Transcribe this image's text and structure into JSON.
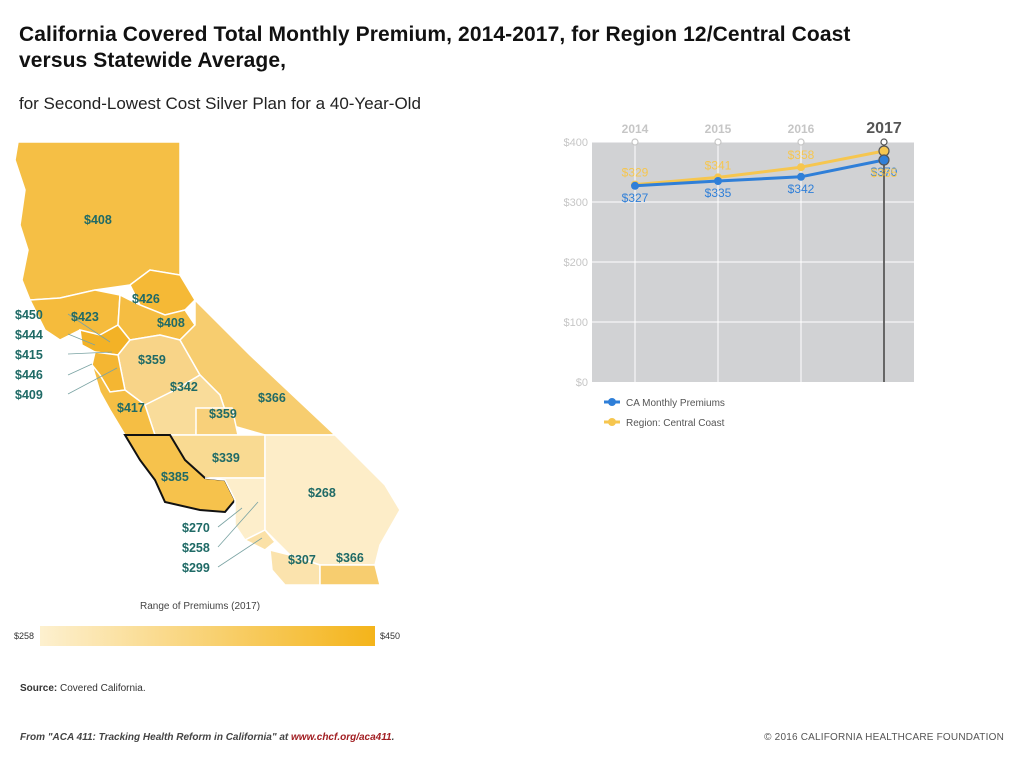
{
  "header": {
    "title_line1": "California Covered Total Monthly Premium, 2014-2017, for Region 12/Central Coast",
    "title_line2": "versus Statewide Average,",
    "subtitle": "for Second-Lowest Cost Silver Plan for a 40-Year-Old"
  },
  "map": {
    "regions": [
      {
        "id": "north",
        "label": "$408",
        "value": 408
      },
      {
        "id": "sierra",
        "label": "$426",
        "value": 426
      },
      {
        "id": "northbay",
        "label": "$423",
        "value": 423
      },
      {
        "id": "sacramento",
        "label": "$408",
        "value": 408
      },
      {
        "id": "sanjoaquin",
        "label": "$359",
        "value": 359
      },
      {
        "id": "central-valley",
        "label": "$342",
        "value": 342
      },
      {
        "id": "tulare",
        "label": "$359",
        "value": 359
      },
      {
        "id": "eastern",
        "label": "$366",
        "value": 366
      },
      {
        "id": "monterey",
        "label": "$417",
        "value": 417
      },
      {
        "id": "central-coast",
        "label": "$385",
        "value": 385
      },
      {
        "id": "kern",
        "label": "$339",
        "value": 339
      },
      {
        "id": "inland-empire",
        "label": "$268",
        "value": 268
      },
      {
        "id": "orange",
        "label": "$307",
        "value": 307
      },
      {
        "id": "sandiego",
        "label": "$366",
        "value": 366
      }
    ],
    "callouts": [
      {
        "label": "$450",
        "value": 450
      },
      {
        "label": "$444",
        "value": 444
      },
      {
        "label": "$415",
        "value": 415
      },
      {
        "label": "$446",
        "value": 446
      },
      {
        "label": "$409",
        "value": 409
      },
      {
        "label": "$270",
        "value": 270
      },
      {
        "label": "$258",
        "value": 258
      },
      {
        "label": "$299",
        "value": 299
      }
    ],
    "range_title": "Range of Premiums (2017)",
    "range_min": "$258",
    "range_max": "$450",
    "colors": {
      "low": "#fdf0cf",
      "high": "#f4b41a",
      "label": "#1f6a66",
      "highlight_border": "#111111"
    }
  },
  "source": {
    "label": "Source:",
    "text": "Covered California."
  },
  "footer": {
    "left_prefix": "From \"ACA 411: Tracking Health Reform in California\" at ",
    "left_link": "www.chcf.org/aca411",
    "left_suffix": ".",
    "right": "© 2016 CALIFORNIA HEALTHCARE FOUNDATION"
  },
  "chart_data": {
    "type": "line",
    "title": "",
    "xlabel": "",
    "ylabel": "",
    "x": [
      "2014",
      "2015",
      "2016",
      "2017"
    ],
    "highlighted_x": "2017",
    "ylim": [
      0,
      400
    ],
    "yticks": [
      0,
      100,
      200,
      300,
      400
    ],
    "ytick_labels": [
      "$0",
      "$100",
      "$200",
      "$300",
      "$400"
    ],
    "grid": true,
    "legend_position": "bottom-left",
    "series": [
      {
        "name": "CA Monthly Premiums",
        "color": "#2f7fd8",
        "values": [
          327,
          335,
          342,
          370
        ],
        "labels": [
          "$327",
          "$335",
          "$342",
          "$370"
        ]
      },
      {
        "name": "Region: Central Coast",
        "color": "#f6c64f",
        "values": [
          329,
          341,
          358,
          385
        ],
        "labels": [
          "$329",
          "$341",
          "$358",
          "$385"
        ]
      }
    ]
  }
}
